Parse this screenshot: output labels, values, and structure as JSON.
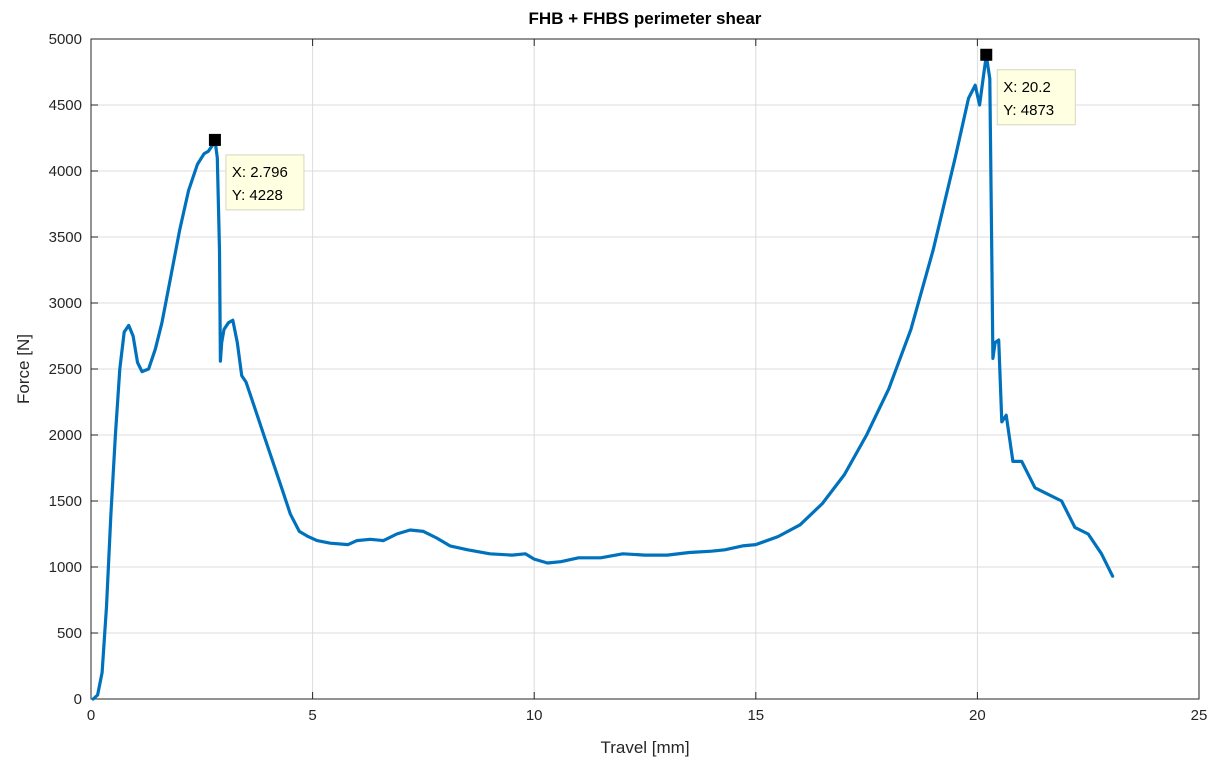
{
  "chart_data": {
    "type": "line",
    "title": "FHB + FHBS perimeter shear",
    "xlabel": "Travel [mm]",
    "ylabel": "Force [N]",
    "xlim": [
      0,
      25
    ],
    "ylim": [
      0,
      5000
    ],
    "xticks": [
      0,
      5,
      10,
      15,
      20,
      25
    ],
    "yticks": [
      0,
      500,
      1000,
      1500,
      2000,
      2500,
      3000,
      3500,
      4000,
      4500,
      5000
    ],
    "grid": true,
    "line_color": "#0072BD",
    "series": [
      {
        "x": [
          0.05,
          0.15,
          0.25,
          0.35,
          0.45,
          0.55,
          0.65,
          0.75,
          0.85,
          0.95,
          1.05,
          1.15,
          1.3,
          1.45,
          1.6,
          1.8,
          2.0,
          2.2,
          2.4,
          2.55,
          2.65,
          2.75,
          2.8,
          2.85,
          2.9,
          2.92,
          2.95,
          3.0,
          3.1,
          3.2,
          3.3,
          3.4,
          3.5,
          3.7,
          3.9,
          4.1,
          4.3,
          4.5,
          4.7,
          4.9,
          5.1,
          5.4,
          5.8,
          6.0,
          6.3,
          6.6,
          6.9,
          7.2,
          7.5,
          7.8,
          8.1,
          8.5,
          9.0,
          9.5,
          9.8,
          10.0,
          10.3,
          10.6,
          11.0,
          11.5,
          12.0,
          12.5,
          13.0,
          13.5,
          14.0,
          14.3,
          14.7,
          15.0,
          15.5,
          16.0,
          16.5,
          17.0,
          17.5,
          18.0,
          18.5,
          19.0,
          19.5,
          19.8,
          19.95,
          20.05,
          20.15,
          20.2,
          20.28,
          20.32,
          20.35,
          20.4,
          20.48,
          20.55,
          20.65,
          20.8,
          21.0,
          21.3,
          21.6,
          21.9,
          22.2,
          22.5,
          22.8,
          23.05
        ],
        "y": [
          0,
          30,
          200,
          700,
          1400,
          2000,
          2500,
          2780,
          2830,
          2750,
          2550,
          2480,
          2500,
          2650,
          2850,
          3200,
          3550,
          3850,
          4050,
          4130,
          4150,
          4200,
          4228,
          4100,
          3400,
          2560,
          2700,
          2800,
          2850,
          2870,
          2700,
          2450,
          2400,
          2200,
          2000,
          1800,
          1600,
          1400,
          1270,
          1230,
          1200,
          1180,
          1170,
          1200,
          1210,
          1200,
          1250,
          1280,
          1270,
          1220,
          1160,
          1130,
          1100,
          1090,
          1100,
          1060,
          1030,
          1040,
          1070,
          1070,
          1100,
          1090,
          1090,
          1110,
          1120,
          1130,
          1160,
          1170,
          1230,
          1320,
          1480,
          1700,
          2000,
          2350,
          2800,
          3400,
          4100,
          4550,
          4650,
          4500,
          4750,
          4873,
          4700,
          3500,
          2580,
          2700,
          2720,
          2100,
          2150,
          1800,
          1800,
          1600,
          1550,
          1500,
          1300,
          1250,
          1100,
          930
        ]
      }
    ],
    "annotations": [
      {
        "x": 2.796,
        "y": 4228,
        "line1": "X: 2.796",
        "line2": "Y: 4228"
      },
      {
        "x": 20.2,
        "y": 4873,
        "line1": "X: 20.2",
        "line2": "Y: 4873"
      }
    ]
  }
}
